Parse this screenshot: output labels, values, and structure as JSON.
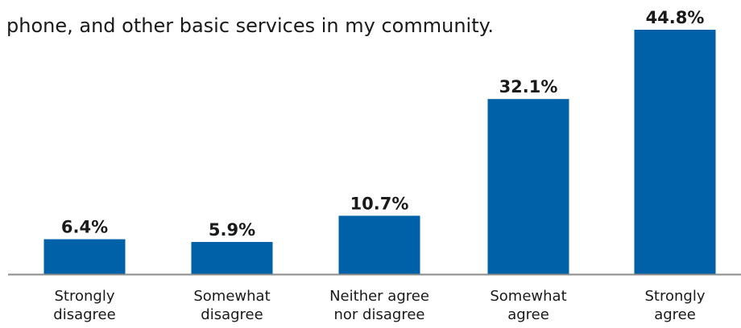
{
  "title_lines": [
    "",
    "phone, and other basic services in my community."
  ],
  "colors": {
    "bar": "#0060A8",
    "axis": "#8a8a8a",
    "text": "#1a1a1a"
  },
  "chart_data": {
    "type": "bar",
    "categories": [
      [
        "Strongly",
        "disagree"
      ],
      [
        "Somewhat",
        "disagree"
      ],
      [
        "Neither agree",
        "nor disagree"
      ],
      [
        "Somewhat",
        "agree"
      ],
      [
        "Strongly",
        "agree"
      ]
    ],
    "values": [
      6.4,
      5.9,
      10.7,
      32.1,
      44.8
    ],
    "value_labels": [
      "6.4%",
      "5.9%",
      "10.7%",
      "32.1%",
      "44.8%"
    ],
    "ylim": [
      0,
      44.8
    ],
    "grid": false,
    "legend": "none"
  }
}
